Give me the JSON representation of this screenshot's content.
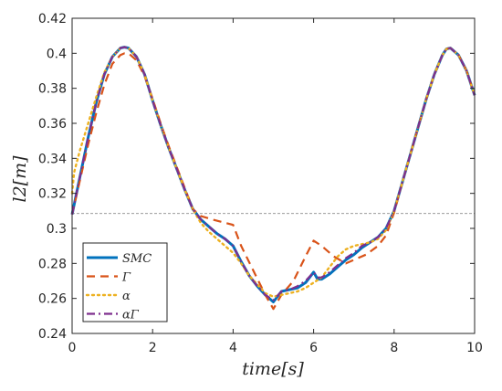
{
  "chart_data": {
    "type": "line",
    "xlabel": "time[s]",
    "ylabel": "l2[m]",
    "xlim": [
      0,
      10
    ],
    "ylim": [
      0.24,
      0.42
    ],
    "xticks": [
      "0",
      "2",
      "4",
      "6",
      "8",
      "10"
    ],
    "yticks": [
      "0.24",
      "0.26",
      "0.28",
      "0.3",
      "0.32",
      "0.34",
      "0.36",
      "0.38",
      "0.4",
      "0.42"
    ],
    "grid": false,
    "legend_position": "bottom-left",
    "reference_line": {
      "y": 0.3085,
      "style": "dashed",
      "color": "#8c8c8c"
    },
    "series": [
      {
        "name": "SMC",
        "legend_label": "SMC",
        "color": "#0072BD",
        "dash": "",
        "width": 3,
        "x": [
          0,
          0.2,
          0.4,
          0.6,
          0.8,
          1.0,
          1.2,
          1.3,
          1.4,
          1.6,
          1.8,
          2.0,
          2.2,
          2.4,
          2.6,
          2.8,
          3.0,
          3.2,
          3.4,
          3.6,
          3.8,
          4.0,
          4.2,
          4.4,
          4.6,
          4.8,
          5.0,
          5.2,
          5.4,
          5.6,
          5.8,
          6.0,
          6.1,
          6.2,
          6.4,
          6.6,
          6.8,
          7.0,
          7.2,
          7.4,
          7.6,
          7.8,
          8.0,
          8.2,
          8.4,
          8.6,
          8.8,
          9.0,
          9.2,
          9.3,
          9.4,
          9.6,
          9.8,
          10.0
        ],
        "y": [
          0.308,
          0.33,
          0.352,
          0.372,
          0.388,
          0.398,
          0.403,
          0.4035,
          0.403,
          0.398,
          0.388,
          0.373,
          0.359,
          0.346,
          0.334,
          0.322,
          0.311,
          0.305,
          0.301,
          0.297,
          0.294,
          0.29,
          0.281,
          0.273,
          0.267,
          0.262,
          0.258,
          0.264,
          0.265,
          0.266,
          0.269,
          0.275,
          0.271,
          0.271,
          0.274,
          0.278,
          0.282,
          0.285,
          0.289,
          0.292,
          0.295,
          0.3,
          0.31,
          0.326,
          0.342,
          0.358,
          0.374,
          0.388,
          0.399,
          0.4025,
          0.403,
          0.399,
          0.39,
          0.376
        ]
      },
      {
        "name": "Γ",
        "legend_label": "Γ",
        "color": "#D95319",
        "dash": "9,6",
        "width": 2.2,
        "x": [
          0,
          0.2,
          0.4,
          0.6,
          0.8,
          1.0,
          1.2,
          1.3,
          1.4,
          1.6,
          1.8,
          2.0,
          2.2,
          2.4,
          2.6,
          2.8,
          3.0,
          3.2,
          3.5,
          4.0,
          4.2,
          4.5,
          4.8,
          5.0,
          5.2,
          5.5,
          5.8,
          6.0,
          6.2,
          6.5,
          6.8,
          7.0,
          7.3,
          7.6,
          7.8,
          8.0,
          8.2,
          8.4,
          8.6,
          8.8,
          9.0,
          9.2,
          9.3,
          9.4,
          9.6,
          9.8,
          10.0
        ],
        "y": [
          0.308,
          0.328,
          0.348,
          0.366,
          0.382,
          0.394,
          0.399,
          0.4,
          0.4,
          0.396,
          0.387,
          0.374,
          0.36,
          0.347,
          0.335,
          0.323,
          0.311,
          0.307,
          0.305,
          0.302,
          0.29,
          0.276,
          0.262,
          0.254,
          0.262,
          0.27,
          0.284,
          0.293,
          0.29,
          0.284,
          0.28,
          0.282,
          0.285,
          0.29,
          0.296,
          0.309,
          0.326,
          0.342,
          0.358,
          0.374,
          0.388,
          0.399,
          0.4025,
          0.403,
          0.399,
          0.39,
          0.376
        ]
      },
      {
        "name": "α",
        "legend_label": "α",
        "color": "#EDB120",
        "dash": "2,4",
        "width": 2.4,
        "x": [
          0,
          0.05,
          0.2,
          0.4,
          0.6,
          0.8,
          1.0,
          1.2,
          1.3,
          1.4,
          1.6,
          1.8,
          2.0,
          2.2,
          2.4,
          2.6,
          2.8,
          3.0,
          3.2,
          3.4,
          3.6,
          3.8,
          4.0,
          4.2,
          4.4,
          4.6,
          4.8,
          5.0,
          5.2,
          5.4,
          5.6,
          5.8,
          6.0,
          6.2,
          6.4,
          6.6,
          6.8,
          7.0,
          7.2,
          7.4,
          7.6,
          7.8,
          8.0,
          8.2,
          8.4,
          8.6,
          8.8,
          9.0,
          9.2,
          9.3,
          9.4,
          9.6,
          9.8,
          10.0
        ],
        "y": [
          0.32,
          0.332,
          0.345,
          0.36,
          0.375,
          0.389,
          0.398,
          0.403,
          0.4035,
          0.403,
          0.398,
          0.388,
          0.373,
          0.359,
          0.346,
          0.334,
          0.322,
          0.311,
          0.303,
          0.298,
          0.294,
          0.29,
          0.286,
          0.28,
          0.273,
          0.268,
          0.263,
          0.261,
          0.262,
          0.263,
          0.264,
          0.266,
          0.269,
          0.272,
          0.278,
          0.284,
          0.288,
          0.29,
          0.291,
          0.292,
          0.294,
          0.299,
          0.31,
          0.326,
          0.342,
          0.358,
          0.374,
          0.388,
          0.399,
          0.4025,
          0.403,
          0.399,
          0.39,
          0.376
        ]
      },
      {
        "name": "αΓ",
        "legend_label": "αΓ",
        "color": "#7E2F8E",
        "dash": "9,4,2,4",
        "width": 2.2,
        "x": [
          0,
          0.2,
          0.4,
          0.6,
          0.8,
          1.0,
          1.2,
          1.3,
          1.4,
          1.6,
          1.8,
          2.0,
          2.2,
          2.4,
          2.6,
          2.8,
          3.0,
          3.2,
          3.4,
          3.6,
          3.8,
          4.0,
          4.2,
          4.4,
          4.6,
          4.8,
          5.0,
          5.2,
          5.4,
          5.6,
          5.8,
          6.0,
          6.1,
          6.2,
          6.4,
          6.6,
          6.8,
          7.0,
          7.2,
          7.4,
          7.6,
          7.8,
          8.0,
          8.2,
          8.4,
          8.6,
          8.8,
          9.0,
          9.2,
          9.3,
          9.4,
          9.6,
          9.8,
          10.0
        ],
        "y": [
          0.308,
          0.33,
          0.352,
          0.372,
          0.388,
          0.398,
          0.403,
          0.4035,
          0.403,
          0.398,
          0.388,
          0.373,
          0.359,
          0.346,
          0.334,
          0.322,
          0.311,
          0.305,
          0.301,
          0.297,
          0.294,
          0.29,
          0.281,
          0.273,
          0.267,
          0.262,
          0.259,
          0.264,
          0.265,
          0.267,
          0.27,
          0.275,
          0.272,
          0.272,
          0.275,
          0.279,
          0.283,
          0.286,
          0.29,
          0.292,
          0.295,
          0.3,
          0.31,
          0.326,
          0.342,
          0.358,
          0.374,
          0.388,
          0.399,
          0.4025,
          0.403,
          0.399,
          0.39,
          0.376
        ]
      }
    ]
  }
}
